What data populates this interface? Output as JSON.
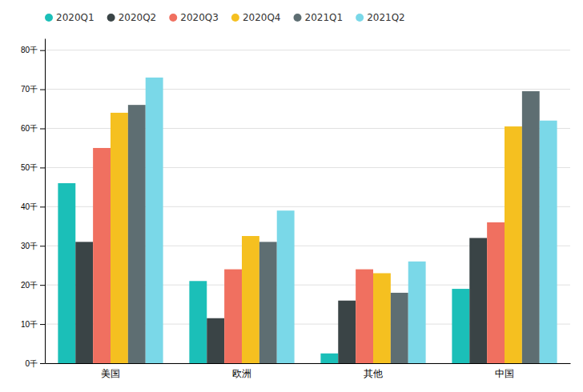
{
  "chart_data": {
    "type": "bar",
    "categories": [
      "美国",
      "欧洲",
      "其他",
      "中国"
    ],
    "series": [
      {
        "name": "2020Q1",
        "color": "#1BBFB8",
        "values": [
          46,
          21,
          2.5,
          19
        ]
      },
      {
        "name": "2020Q2",
        "color": "#3A4446",
        "values": [
          31,
          11.5,
          16,
          32
        ]
      },
      {
        "name": "2020Q3",
        "color": "#F07060",
        "values": [
          55,
          24,
          24,
          36
        ]
      },
      {
        "name": "2020Q4",
        "color": "#F5C020",
        "values": [
          64,
          32.5,
          23,
          60.5
        ]
      },
      {
        "name": "2021Q1",
        "color": "#5E6E72",
        "values": [
          66,
          31,
          18,
          69.5
        ]
      },
      {
        "name": "2021Q2",
        "color": "#7AD8E8",
        "values": [
          73,
          39,
          26,
          62
        ]
      }
    ],
    "ylim": [
      0,
      83
    ],
    "yticks": [
      {
        "value": 0,
        "label": "0千"
      },
      {
        "value": 10,
        "label": "10千"
      },
      {
        "value": 20,
        "label": "20千"
      },
      {
        "value": 30,
        "label": "30千"
      },
      {
        "value": 40,
        "label": "40千"
      },
      {
        "value": 50,
        "label": "50千"
      },
      {
        "value": 60,
        "label": "60千"
      },
      {
        "value": 70,
        "label": "70千"
      },
      {
        "value": 80,
        "label": "80千"
      }
    ],
    "grid": true,
    "legend": "upper left"
  }
}
